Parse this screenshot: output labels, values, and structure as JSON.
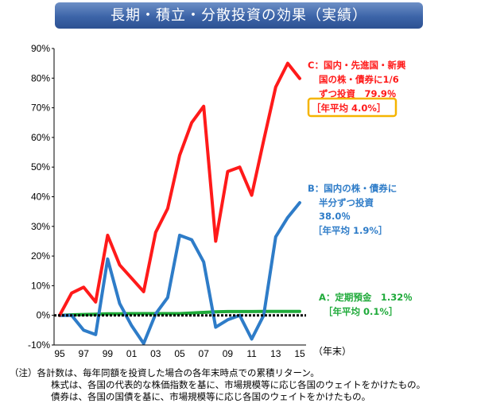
{
  "header": {
    "title": "長期・積立・分散投資の効果（実績）"
  },
  "chart_data": {
    "type": "line",
    "x": [
      1995,
      1996,
      1997,
      1998,
      1999,
      2000,
      2001,
      2002,
      2003,
      2004,
      2005,
      2006,
      2007,
      2008,
      2009,
      2010,
      2011,
      2012,
      2013,
      2014,
      2015
    ],
    "x_tick_labels": [
      "95",
      "97",
      "99",
      "01",
      "03",
      "05",
      "07",
      "09",
      "11",
      "13",
      "15"
    ],
    "x_tick_years": [
      1995,
      1997,
      1999,
      2001,
      2003,
      2005,
      2007,
      2009,
      2011,
      2013,
      2015
    ],
    "x_unit_label": "（年末）",
    "y_tick_labels": [
      "90%",
      "80%",
      "70%",
      "60%",
      "50%",
      "40%",
      "30%",
      "20%",
      "10%",
      "0%",
      "-10%"
    ],
    "ylim": [
      -10,
      90
    ],
    "series": [
      {
        "id": "C",
        "color": "#ff1a1a",
        "values": [
          0,
          7.5,
          9.5,
          4.5,
          27,
          17,
          12.5,
          8,
          28,
          36,
          54,
          65,
          70.5,
          25,
          48.5,
          50,
          40.5,
          59,
          77,
          85,
          79.9
        ]
      },
      {
        "id": "B",
        "color": "#2e7cc8",
        "values": [
          0,
          0,
          -5,
          -6.5,
          19,
          4,
          -3.5,
          -9.5,
          0.5,
          6,
          27,
          25.5,
          18,
          -4,
          -1.5,
          0,
          -8,
          0,
          26.5,
          33,
          38
        ]
      },
      {
        "id": "A",
        "color": "#1faa3a",
        "values": [
          0,
          0.2,
          0.3,
          0.4,
          0.5,
          0.5,
          0.6,
          0.6,
          0.6,
          0.6,
          0.6,
          0.8,
          1.0,
          1.2,
          1.3,
          1.3,
          1.3,
          1.32,
          1.32,
          1.32,
          1.32
        ]
      }
    ],
    "annotations": {
      "c_lines": [
        "C：国内・先進国・新興",
        "国の株・債券に1/6",
        "ずつ投資　79.9％"
      ],
      "c_avg": "［年平均 4.0%］",
      "b_lines": [
        "B：国内の株・債券に",
        "半分ずつ投資",
        "38.0％",
        "［年平均 1.9%］"
      ],
      "a_lines": [
        "A：定期預金　1.32％",
        "［年平均 0.1%］"
      ]
    },
    "colors": {
      "c_text": "#ff1a1a",
      "b_text": "#2e7cc8",
      "a_text": "#1faa3a",
      "c_box": "#f5b400"
    }
  },
  "notes": [
    "（注）各計数は、毎年同額を投資した場合の各年末時点での累積リターン。",
    "株式は、各国の代表的な株価指数を基に、市場規模等に応じ各国のウェイトをかけたもの。",
    "債券は、各国の国債を基に、市場規模等に応じ各国のウェイトをかけたもの。"
  ]
}
